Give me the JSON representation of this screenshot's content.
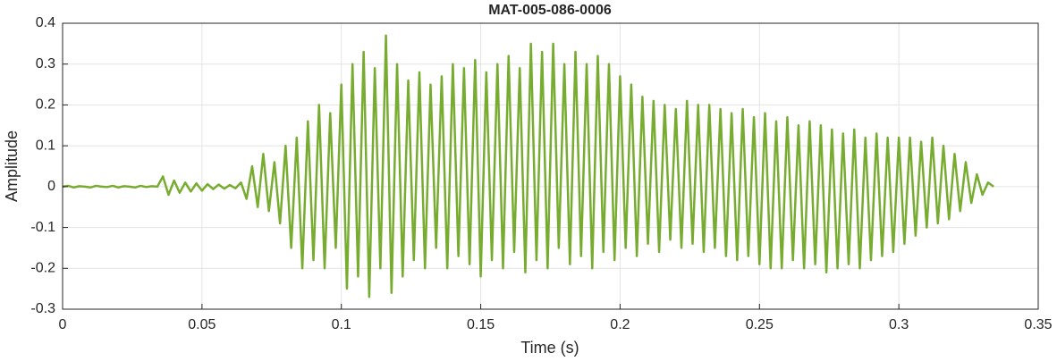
{
  "chart_data": {
    "type": "line",
    "title": "MAT-005-086-0006",
    "x_label": "Time (s)",
    "y_label": "Amplitude",
    "x": [
      0,
      0.002,
      0.004,
      0.006,
      0.008,
      0.01,
      0.012,
      0.014,
      0.016,
      0.018,
      0.02,
      0.022,
      0.024,
      0.026,
      0.028,
      0.03,
      0.032,
      0.034,
      0.036,
      0.038,
      0.04,
      0.042,
      0.044,
      0.046,
      0.048,
      0.05,
      0.052,
      0.054,
      0.056,
      0.058,
      0.06,
      0.062,
      0.064,
      0.066,
      0.068,
      0.07,
      0.072,
      0.074,
      0.076,
      0.078,
      0.08,
      0.082,
      0.084,
      0.086,
      0.088,
      0.09,
      0.092,
      0.094,
      0.096,
      0.098,
      0.1,
      0.102,
      0.104,
      0.106,
      0.108,
      0.11,
      0.112,
      0.114,
      0.116,
      0.118,
      0.12,
      0.122,
      0.124,
      0.126,
      0.128,
      0.13,
      0.132,
      0.134,
      0.136,
      0.138,
      0.14,
      0.142,
      0.144,
      0.146,
      0.148,
      0.15,
      0.152,
      0.154,
      0.156,
      0.158,
      0.16,
      0.162,
      0.164,
      0.166,
      0.168,
      0.17,
      0.172,
      0.174,
      0.176,
      0.178,
      0.18,
      0.182,
      0.184,
      0.186,
      0.188,
      0.19,
      0.192,
      0.194,
      0.196,
      0.198,
      0.2,
      0.202,
      0.204,
      0.206,
      0.208,
      0.21,
      0.212,
      0.214,
      0.216,
      0.218,
      0.22,
      0.222,
      0.224,
      0.226,
      0.228,
      0.23,
      0.232,
      0.234,
      0.236,
      0.238,
      0.24,
      0.242,
      0.244,
      0.246,
      0.248,
      0.25,
      0.252,
      0.254,
      0.256,
      0.258,
      0.26,
      0.262,
      0.264,
      0.266,
      0.268,
      0.27,
      0.272,
      0.274,
      0.276,
      0.278,
      0.28,
      0.282,
      0.284,
      0.286,
      0.288,
      0.29,
      0.292,
      0.294,
      0.296,
      0.298,
      0.3,
      0.302,
      0.304,
      0.306,
      0.308,
      0.31,
      0.312,
      0.314,
      0.316,
      0.318,
      0.32,
      0.322,
      0.324,
      0.326,
      0.328,
      0.33,
      0.332,
      0.334
    ],
    "series": [
      {
        "name": "Amplitude",
        "color": "#77ac30",
        "values": [
          0,
          0.002,
          -0.002,
          0.001,
          0,
          -0.002,
          0.002,
          0,
          -0.001,
          0.002,
          -0.002,
          0.001,
          0,
          -0.002,
          0.002,
          -0.001,
          0.001,
          0,
          0.025,
          -0.02,
          0.015,
          -0.015,
          0.01,
          -0.012,
          0.008,
          -0.01,
          0.006,
          -0.006,
          0.005,
          -0.005,
          0.004,
          -0.004,
          0.01,
          -0.03,
          0.05,
          -0.05,
          0.08,
          -0.06,
          0.06,
          -0.09,
          0.1,
          -0.15,
          0.12,
          -0.2,
          0.16,
          -0.18,
          0.2,
          -0.2,
          0.18,
          -0.15,
          0.25,
          -0.25,
          0.3,
          -0.22,
          0.33,
          -0.27,
          0.29,
          -0.2,
          0.37,
          -0.26,
          0.3,
          -0.22,
          0.26,
          -0.18,
          0.28,
          -0.2,
          0.25,
          -0.15,
          0.27,
          -0.2,
          0.3,
          -0.17,
          0.29,
          -0.19,
          0.31,
          -0.22,
          0.28,
          -0.18,
          0.3,
          -0.2,
          0.32,
          -0.16,
          0.29,
          -0.21,
          0.35,
          -0.18,
          0.33,
          -0.2,
          0.35,
          -0.15,
          0.3,
          -0.19,
          0.33,
          -0.17,
          0.3,
          -0.2,
          0.32,
          -0.16,
          0.3,
          -0.18,
          0.27,
          -0.15,
          0.25,
          -0.17,
          0.22,
          -0.14,
          0.21,
          -0.16,
          0.2,
          -0.13,
          0.19,
          -0.15,
          0.21,
          -0.14,
          0.2,
          -0.16,
          0.2,
          -0.15,
          0.19,
          -0.17,
          0.18,
          -0.18,
          0.19,
          -0.17,
          0.17,
          -0.19,
          0.18,
          -0.2,
          0.16,
          -0.2,
          0.17,
          -0.18,
          0.15,
          -0.2,
          0.16,
          -0.19,
          0.15,
          -0.21,
          0.14,
          -0.2,
          0.13,
          -0.19,
          0.14,
          -0.2,
          0.12,
          -0.18,
          0.13,
          -0.17,
          0.12,
          -0.16,
          0.12,
          -0.14,
          0.12,
          -0.12,
          0.11,
          -0.1,
          0.12,
          -0.09,
          0.1,
          -0.08,
          0.08,
          -0.06,
          0.06,
          -0.04,
          0.03,
          -0.02,
          0.01,
          0
        ]
      }
    ],
    "xlim": [
      0,
      0.35
    ],
    "xticks": [
      0,
      0.05,
      0.1,
      0.15,
      0.2,
      0.25,
      0.3,
      0.35
    ],
    "ylim": [
      -0.3,
      0.4
    ],
    "yticks": [
      -0.3,
      -0.2,
      -0.1,
      0,
      0.1,
      0.2,
      0.3,
      0.4
    ],
    "grid": true
  }
}
